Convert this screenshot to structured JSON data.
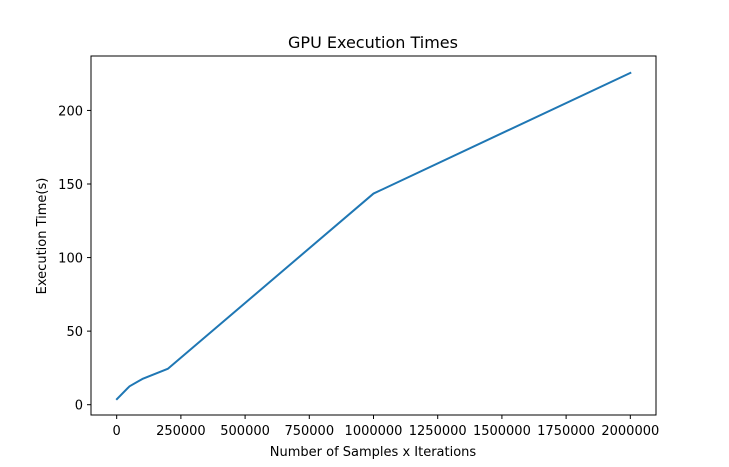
{
  "chart_data": {
    "type": "line",
    "title": "GPU Execution Times",
    "xlabel": "Number of Samples x Iterations",
    "ylabel": "Execution Time(s)",
    "xlim": [
      -100000,
      2100000
    ],
    "ylim": [
      -7,
      237
    ],
    "xticks": [
      0,
      250000,
      500000,
      750000,
      1000000,
      1250000,
      1500000,
      1750000,
      2000000
    ],
    "xtick_labels": [
      "0",
      "250000",
      "500000",
      "750000",
      "1000000",
      "1250000",
      "1500000",
      "1750000",
      "2000000"
    ],
    "yticks": [
      0,
      50,
      100,
      150,
      200
    ],
    "ytick_labels": [
      "0",
      "50",
      "100",
      "150",
      "200"
    ],
    "grid": false,
    "series": [
      {
        "color": "#1f77b4",
        "x": [
          1000,
          50000,
          100000,
          200000,
          1000000,
          2000000
        ],
        "y": [
          3.8,
          12.5,
          17.5,
          24.5,
          143.5,
          225.5
        ]
      }
    ]
  }
}
